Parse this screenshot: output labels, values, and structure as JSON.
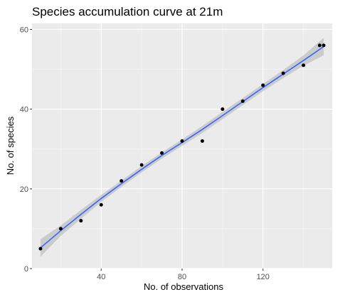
{
  "chart_data": {
    "type": "scatter",
    "title": "Species accumulation curve at 21m",
    "xlabel": "No. of observations",
    "ylabel": "No. of species",
    "xlim": [
      5.8,
      154.2
    ],
    "ylim": [
      0,
      61.5
    ],
    "x_ticks": [
      40,
      80,
      120
    ],
    "y_ticks": [
      0,
      20,
      40,
      60
    ],
    "x_minor_ticks": [
      20,
      60,
      100,
      140
    ],
    "y_minor_ticks": [
      10,
      30,
      50
    ],
    "grid": true,
    "legend": "none",
    "points": {
      "x": [
        10,
        20,
        30,
        40,
        50,
        60,
        70,
        80,
        90,
        100,
        110,
        120,
        130,
        140,
        148,
        150
      ],
      "y": [
        5,
        10,
        12,
        16,
        22,
        26,
        29,
        32,
        32,
        40,
        42,
        46,
        49,
        51,
        56,
        56
      ]
    },
    "smooth": {
      "x": [
        10,
        20,
        30,
        40,
        50,
        60,
        70,
        80,
        90,
        100,
        110,
        120,
        130,
        140,
        150
      ],
      "y": [
        5.2,
        9.5,
        13.6,
        17.6,
        21.3,
        24.9,
        28.4,
        31.6,
        34.9,
        38.4,
        41.9,
        45.4,
        48.8,
        52.2,
        55.7
      ],
      "lower": [
        3.0,
        8.2,
        12.5,
        16.7,
        20.5,
        24.1,
        27.6,
        30.8,
        34.0,
        37.5,
        41.0,
        44.5,
        47.8,
        50.9,
        53.5
      ],
      "upper": [
        7.4,
        10.8,
        14.7,
        18.5,
        22.1,
        25.7,
        29.2,
        32.4,
        35.8,
        39.3,
        42.8,
        46.3,
        49.8,
        53.5,
        57.9
      ]
    },
    "colors": {
      "panel": "#EBEBEB",
      "grid_major": "#FFFFFF",
      "points": "#000000",
      "line": "#3366FF",
      "ribbon": "#BEBEBE"
    }
  }
}
